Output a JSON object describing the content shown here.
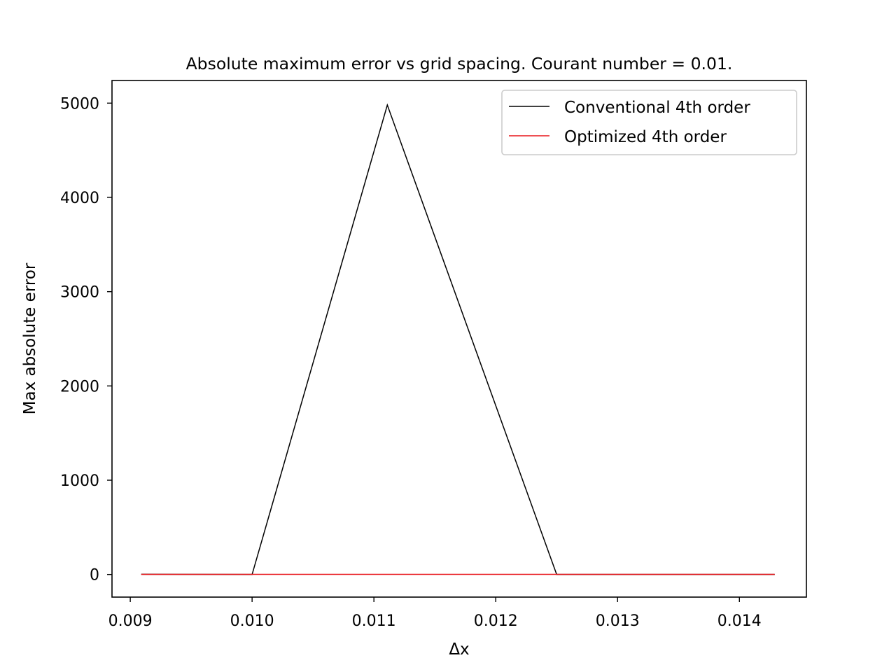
{
  "chart_data": {
    "type": "line",
    "title": "Absolute maximum error vs grid spacing. Courant number = 0.01.",
    "xlabel": "Δx",
    "ylabel": "Max absolute error",
    "xlim": [
      0.00885,
      0.01455
    ],
    "ylim": [
      -240,
      5240
    ],
    "xticks": [
      {
        "value": 0.009,
        "label": "0.009"
      },
      {
        "value": 0.01,
        "label": "0.010"
      },
      {
        "value": 0.011,
        "label": "0.011"
      },
      {
        "value": 0.012,
        "label": "0.012"
      },
      {
        "value": 0.013,
        "label": "0.013"
      },
      {
        "value": 0.014,
        "label": "0.014"
      }
    ],
    "yticks": [
      {
        "value": 0,
        "label": "0"
      },
      {
        "value": 1000,
        "label": "1000"
      },
      {
        "value": 2000,
        "label": "2000"
      },
      {
        "value": 3000,
        "label": "3000"
      },
      {
        "value": 4000,
        "label": "4000"
      },
      {
        "value": 5000,
        "label": "5000"
      }
    ],
    "grid": false,
    "legend_position": "top-right",
    "series": [
      {
        "name": "Conventional 4th order",
        "color": "#000000",
        "x": [
          0.00909,
          0.01,
          0.01111,
          0.0125,
          0.01429
        ],
        "y": [
          2,
          0,
          4980,
          0,
          0
        ]
      },
      {
        "name": "Optimized 4th order",
        "color": "#e8161b",
        "x": [
          0.00909,
          0.01,
          0.01111,
          0.0125,
          0.01429
        ],
        "y": [
          1,
          1,
          1,
          1,
          1
        ]
      }
    ]
  }
}
